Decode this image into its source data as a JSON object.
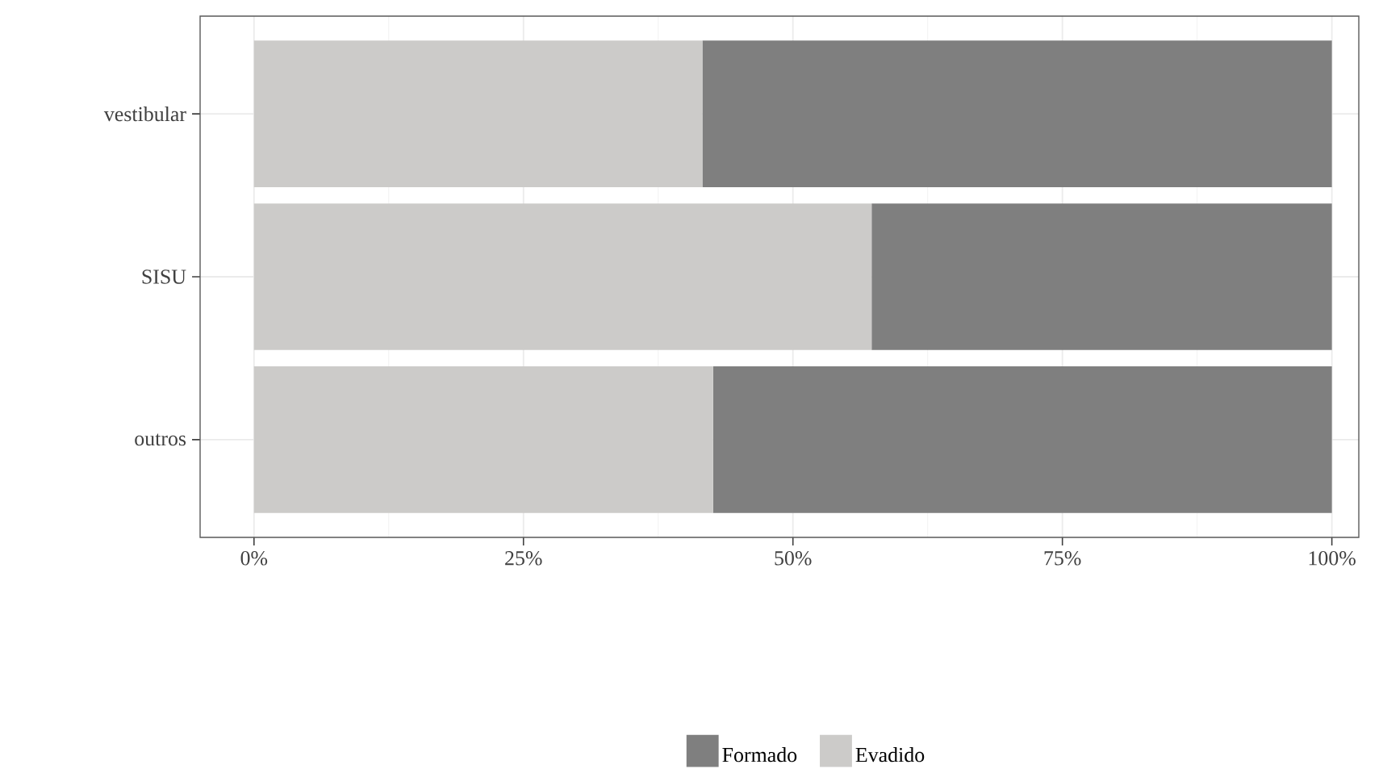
{
  "chart_data": {
    "type": "bar",
    "orientation": "horizontal",
    "stacked": true,
    "categories": [
      "vestibular",
      "SISU",
      "outros"
    ],
    "series": [
      {
        "name": "Evadido",
        "color": "#cccbc9",
        "values": [
          41.6,
          57.3,
          42.6
        ]
      },
      {
        "name": "Formado",
        "color": "#7f7f7f",
        "values": [
          58.4,
          42.7,
          57.4
        ]
      }
    ],
    "xlim": [
      -5,
      102.5
    ],
    "xticks": [
      {
        "value": 0,
        "label": "0%"
      },
      {
        "value": 25,
        "label": "25%"
      },
      {
        "value": 50,
        "label": "50%"
      },
      {
        "value": 75,
        "label": "75%"
      },
      {
        "value": 100,
        "label": "100%"
      }
    ],
    "grid": true,
    "legend": "bottom"
  }
}
